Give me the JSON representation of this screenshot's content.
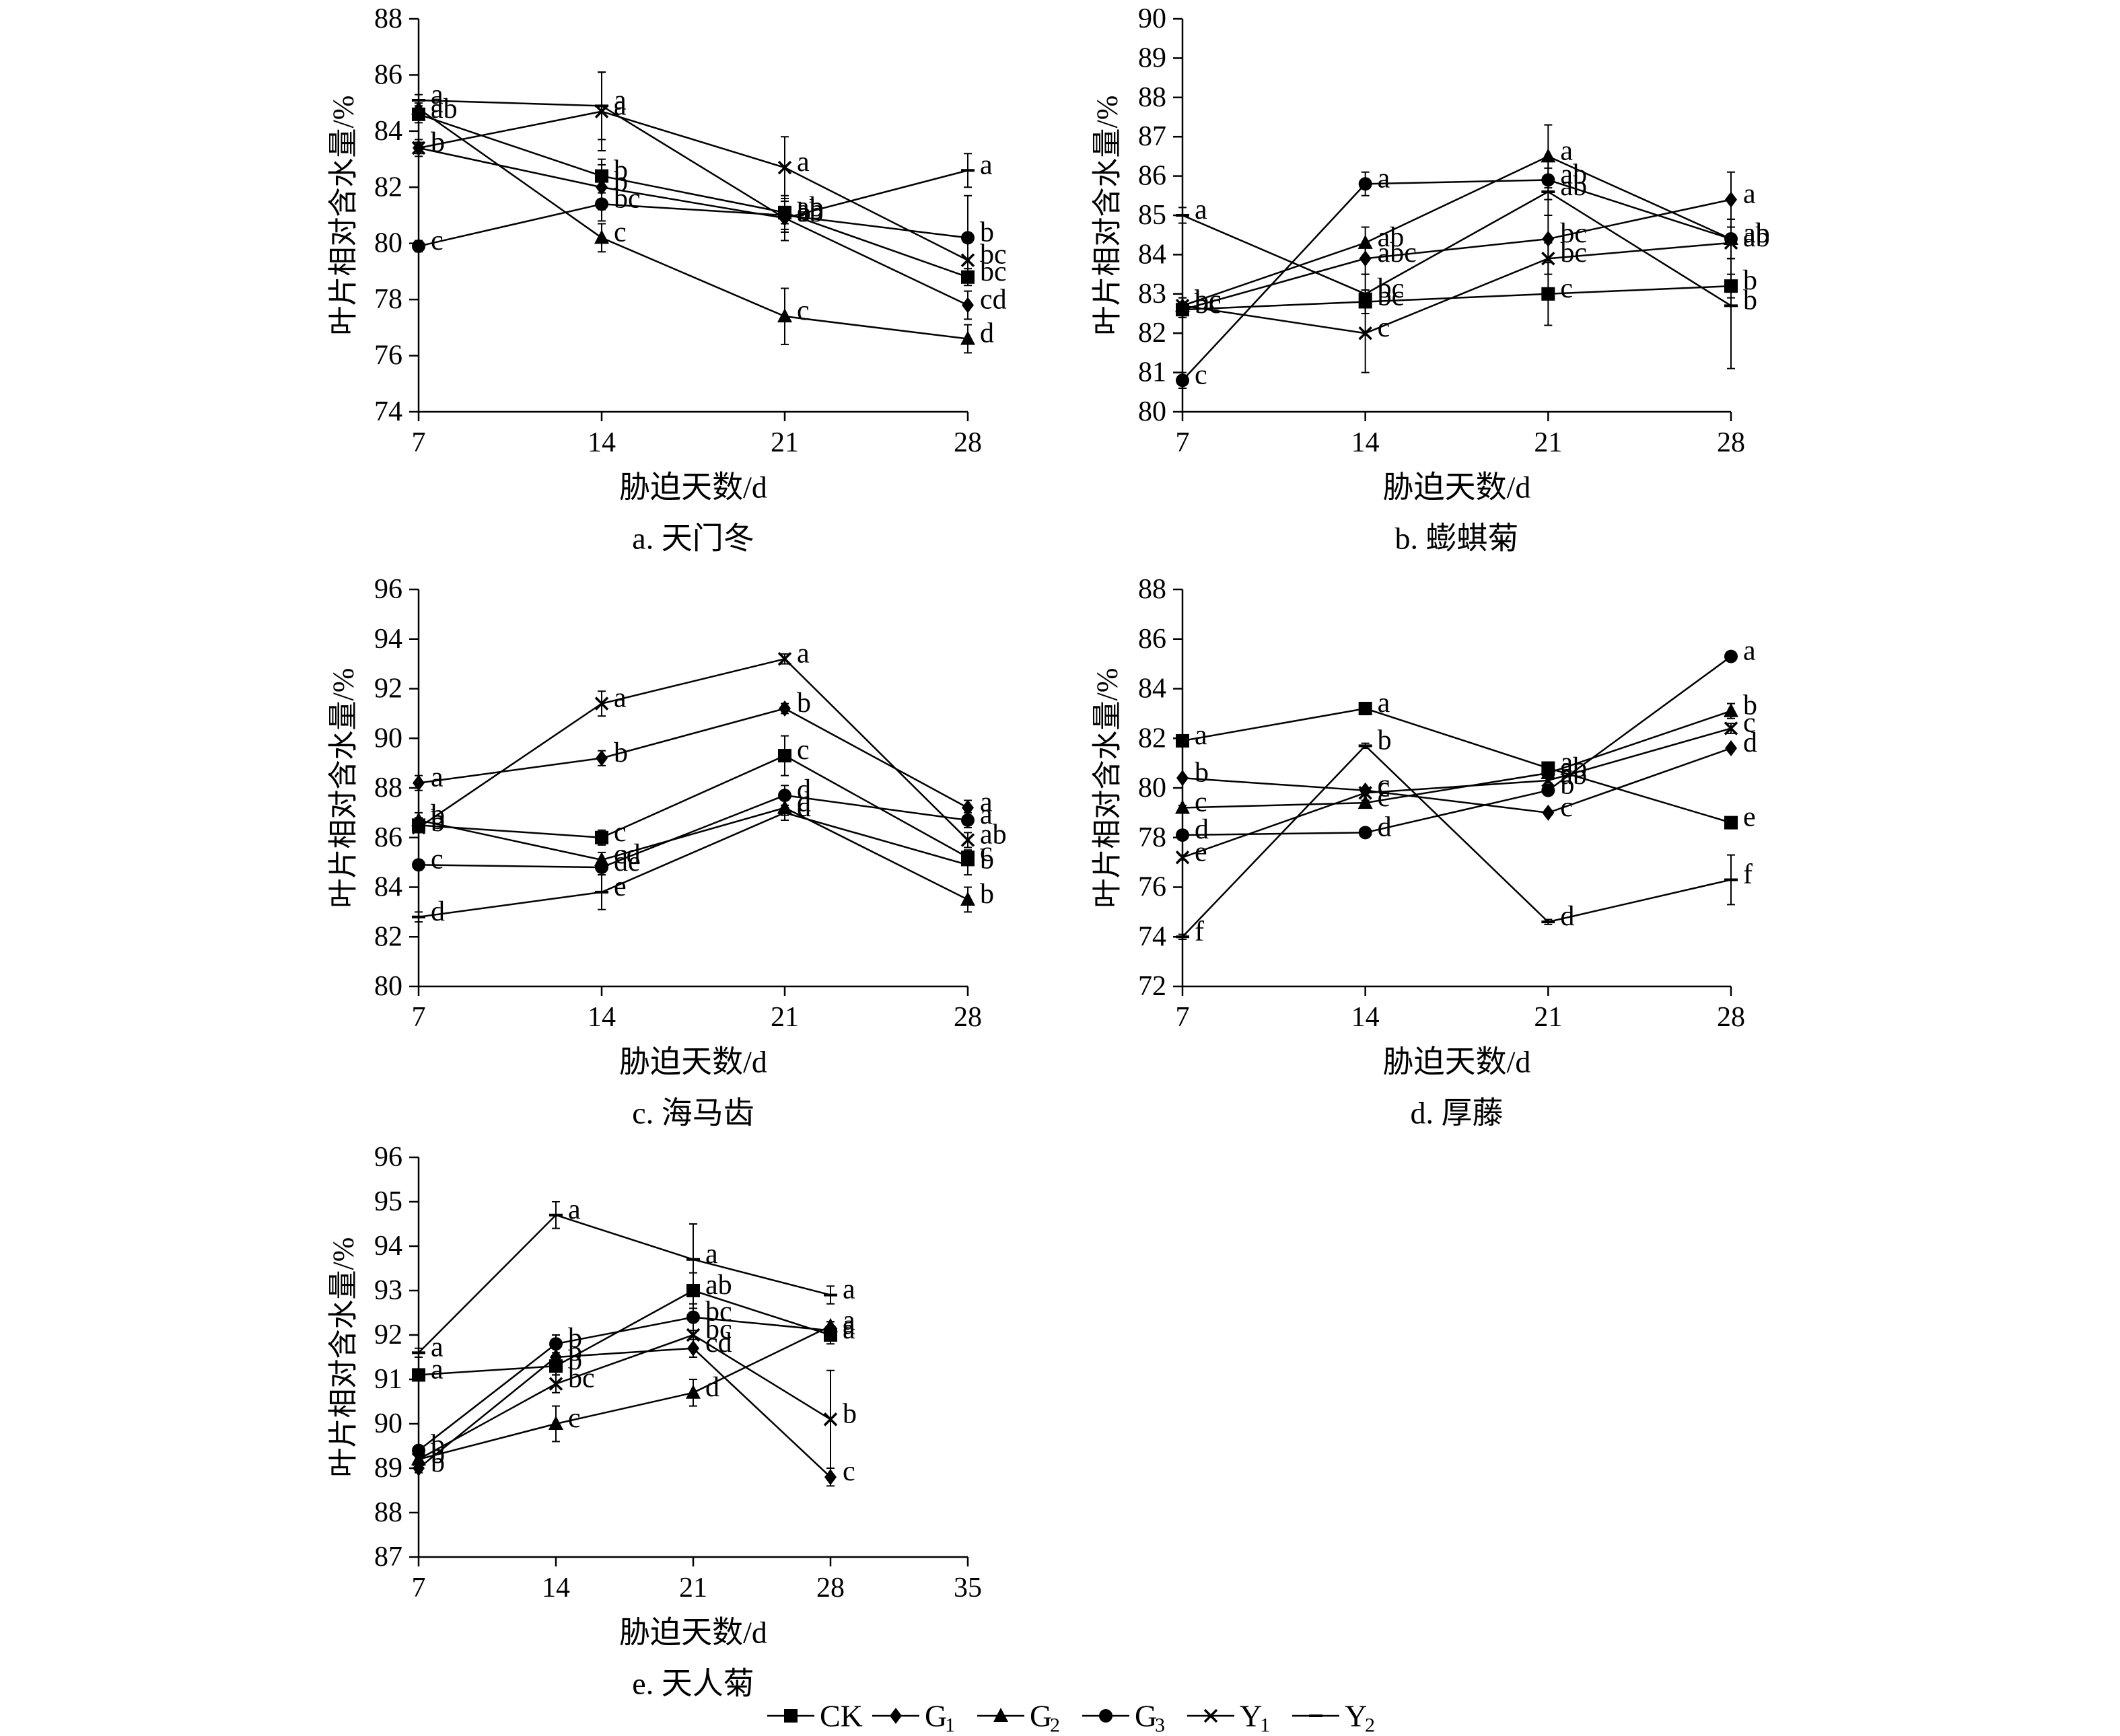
{
  "figure": {
    "legend": [
      {
        "id": "CK",
        "label": "CK",
        "sub": "",
        "marker": "square"
      },
      {
        "id": "G1",
        "label": "G",
        "sub": "1",
        "marker": "diamond"
      },
      {
        "id": "G2",
        "label": "G",
        "sub": "2",
        "marker": "triangle"
      },
      {
        "id": "G3",
        "label": "G",
        "sub": "3",
        "marker": "circle"
      },
      {
        "id": "Y1",
        "label": "Y",
        "sub": "1",
        "marker": "x"
      },
      {
        "id": "Y2",
        "label": "Y",
        "sub": "2",
        "marker": "dash"
      }
    ],
    "line_color": "#000000"
  },
  "chart_data": [
    {
      "type": "line",
      "caption": "a. 天门冬",
      "xlabel": "胁迫天数/d",
      "ylabel": "叶片相对含水量/%",
      "x": [
        7,
        14,
        21,
        28
      ],
      "xticks": [
        7,
        14,
        21,
        28
      ],
      "ylim": [
        74,
        88
      ],
      "yticks": [
        74,
        76,
        78,
        80,
        82,
        84,
        86,
        88
      ],
      "grid": false,
      "series": [
        {
          "name": "CK",
          "values": [
            84.6,
            82.4,
            81.1,
            78.8
          ],
          "errors": [
            0.3,
            0.6,
            0.4,
            0.3
          ],
          "letters": [
            "ab",
            "b",
            "ab",
            "bc"
          ]
        },
        {
          "name": "G1",
          "values": [
            83.4,
            82.0,
            80.9,
            77.8
          ],
          "errors": [
            0.2,
            0.8,
            0.4,
            0.5
          ],
          "letters": [
            "b",
            "b",
            "b",
            "cd"
          ]
        },
        {
          "name": "G2",
          "values": [
            84.8,
            80.2,
            77.4,
            76.6
          ],
          "errors": [
            0.2,
            0.5,
            1.0,
            0.5
          ],
          "letters": [
            "a",
            "c",
            "c",
            "d"
          ]
        },
        {
          "name": "G3",
          "values": [
            79.9,
            81.4,
            81.0,
            80.2
          ],
          "errors": [
            0.2,
            0.6,
            0.6,
            1.5
          ],
          "letters": [
            "c",
            "bc",
            "ab",
            "b"
          ]
        },
        {
          "name": "Y1",
          "values": [
            83.4,
            84.7,
            82.7,
            79.4
          ],
          "errors": [
            0.3,
            1.4,
            1.1,
            0.7
          ],
          "letters": [
            "b",
            "a",
            "a",
            "bc"
          ]
        },
        {
          "name": "Y2",
          "values": [
            85.1,
            84.9,
            80.9,
            82.6
          ],
          "errors": [
            0.2,
            1.2,
            0.8,
            0.6
          ],
          "letters": [
            "a",
            "a",
            "ab",
            "a"
          ]
        }
      ]
    },
    {
      "type": "line",
      "caption": "b. 蟛蜞菊",
      "xlabel": "胁迫天数/d",
      "ylabel": "叶片相对含水量/%",
      "x": [
        7,
        14,
        21,
        28
      ],
      "xticks": [
        7,
        14,
        21,
        28
      ],
      "ylim": [
        80,
        90
      ],
      "yticks": [
        80,
        81,
        82,
        83,
        84,
        85,
        86,
        87,
        88,
        89,
        90
      ],
      "grid": false,
      "series": [
        {
          "name": "CK",
          "values": [
            82.6,
            82.8,
            83.0,
            83.2
          ],
          "errors": [
            0.2,
            0.3,
            0.8,
            0.3
          ],
          "letters": [
            "bc",
            "bc",
            "c",
            "b"
          ]
        },
        {
          "name": "G1",
          "values": [
            82.6,
            83.9,
            84.4,
            85.4
          ],
          "errors": [
            0.2,
            0.4,
            0.6,
            0.7
          ],
          "letters": [
            "bc",
            "abc",
            "bc",
            "a"
          ]
        },
        {
          "name": "G2",
          "values": [
            82.7,
            84.3,
            86.5,
            84.4
          ],
          "errors": [
            0.2,
            0.4,
            0.8,
            0.5
          ],
          "letters": [
            "bc",
            "ab",
            "a",
            "ab"
          ]
        },
        {
          "name": "G3",
          "values": [
            80.8,
            85.8,
            85.9,
            84.4
          ],
          "errors": [
            0.2,
            0.3,
            0.5,
            0.5
          ],
          "letters": [
            "c",
            "a",
            "ab",
            "ab"
          ]
        },
        {
          "name": "Y1",
          "values": [
            82.7,
            82.0,
            83.9,
            84.3
          ],
          "errors": [
            0.2,
            1.0,
            0.4,
            0.4
          ],
          "letters": [
            "bc",
            "c",
            "bc",
            "ab"
          ]
        },
        {
          "name": "Y2",
          "values": [
            85.0,
            83.0,
            85.6,
            82.7
          ],
          "errors": [
            0.2,
            0.5,
            0.6,
            1.6
          ],
          "letters": [
            "a",
            "bc",
            "ab",
            "b"
          ]
        }
      ]
    },
    {
      "type": "line",
      "caption": "c. 海马齿",
      "xlabel": "胁迫天数/d",
      "ylabel": "叶片相对含水量/%",
      "x": [
        7,
        14,
        21,
        28
      ],
      "xticks": [
        7,
        14,
        21,
        28
      ],
      "ylim": [
        80,
        96
      ],
      "yticks": [
        80,
        82,
        84,
        86,
        88,
        90,
        92,
        94,
        96
      ],
      "grid": false,
      "series": [
        {
          "name": "CK",
          "values": [
            86.5,
            86.0,
            89.3,
            85.2
          ],
          "errors": [
            0.3,
            0.3,
            0.8,
            0.3
          ],
          "letters": [
            "b",
            "c",
            "c",
            "c"
          ]
        },
        {
          "name": "G1",
          "values": [
            88.2,
            89.2,
            91.2,
            87.2
          ],
          "errors": [
            0.3,
            0.3,
            0.2,
            0.3
          ],
          "letters": [
            "a",
            "b",
            "b",
            "a"
          ]
        },
        {
          "name": "G2",
          "values": [
            86.7,
            85.1,
            87.2,
            83.5
          ],
          "errors": [
            0.3,
            0.3,
            0.3,
            0.5
          ],
          "letters": [
            "b",
            "cd",
            "d",
            "b"
          ]
        },
        {
          "name": "G3",
          "values": [
            84.9,
            84.8,
            87.7,
            86.7
          ],
          "errors": [
            0.2,
            0.3,
            0.4,
            0.3
          ],
          "letters": [
            "c",
            "de",
            "d",
            "a"
          ]
        },
        {
          "name": "Y1",
          "values": [
            86.4,
            91.4,
            93.2,
            85.9
          ],
          "errors": [
            0.2,
            0.5,
            0.2,
            0.3
          ],
          "letters": [
            "b",
            "a",
            "a",
            "ab"
          ]
        },
        {
          "name": "Y2",
          "values": [
            82.8,
            83.8,
            87.0,
            84.9
          ],
          "errors": [
            0.2,
            0.7,
            0.3,
            0.4
          ],
          "letters": [
            "d",
            "e",
            "d",
            "b"
          ]
        }
      ]
    },
    {
      "type": "line",
      "caption": "d. 厚藤",
      "xlabel": "胁迫天数/d",
      "ylabel": "叶片相对含水量/%",
      "x": [
        7,
        14,
        21,
        28
      ],
      "xticks": [
        7,
        14,
        21,
        28
      ],
      "ylim": [
        72,
        88
      ],
      "yticks": [
        72,
        74,
        76,
        78,
        80,
        82,
        84,
        86,
        88
      ],
      "grid": false,
      "series": [
        {
          "name": "CK",
          "values": [
            81.9,
            83.2,
            80.8,
            78.6
          ],
          "errors": [
            0.1,
            0.1,
            0.1,
            0.1
          ],
          "letters": [
            "a",
            "a",
            "a",
            "e"
          ]
        },
        {
          "name": "G1",
          "values": [
            80.4,
            79.9,
            79.0,
            81.6
          ],
          "errors": [
            0.1,
            0.1,
            0.1,
            0.1
          ],
          "letters": [
            "b",
            "c",
            "c",
            "d"
          ]
        },
        {
          "name": "G2",
          "values": [
            79.2,
            79.4,
            80.6,
            83.1
          ],
          "errors": [
            0.1,
            0.1,
            0.1,
            0.3
          ],
          "letters": [
            "c",
            "c",
            "ab",
            "b"
          ]
        },
        {
          "name": "G3",
          "values": [
            78.1,
            78.2,
            79.9,
            85.3
          ],
          "errors": [
            0.1,
            0.1,
            0.1,
            0.1
          ],
          "letters": [
            "d",
            "d",
            "b",
            "a"
          ]
        },
        {
          "name": "Y1",
          "values": [
            77.2,
            79.8,
            80.3,
            82.4
          ],
          "errors": [
            0.1,
            0.1,
            0.1,
            0.2
          ],
          "letters": [
            "e",
            "c",
            "ab",
            "c"
          ]
        },
        {
          "name": "Y2",
          "values": [
            74.0,
            81.7,
            74.6,
            76.3
          ],
          "errors": [
            0.1,
            0.1,
            0.1,
            1.0
          ],
          "letters": [
            "f",
            "b",
            "d",
            "f"
          ]
        }
      ]
    },
    {
      "type": "line",
      "caption": "e. 天人菊",
      "xlabel": "胁迫天数/d",
      "ylabel": "叶片相对含水量/%",
      "x": [
        7,
        14,
        21,
        28
      ],
      "xticks": [
        7,
        14,
        21,
        28,
        35
      ],
      "ylim": [
        87,
        96
      ],
      "yticks": [
        87,
        88,
        89,
        90,
        91,
        92,
        93,
        94,
        95,
        96
      ],
      "grid": false,
      "series": [
        {
          "name": "CK",
          "values": [
            91.1,
            91.3,
            93.0,
            92.0
          ],
          "errors": [
            0.1,
            0.2,
            0.4,
            0.2
          ],
          "letters": [
            "a",
            "b",
            "ab",
            "a"
          ]
        },
        {
          "name": "G1",
          "values": [
            89.0,
            91.5,
            91.7,
            88.8
          ],
          "errors": [
            0.1,
            0.2,
            0.2,
            0.2
          ],
          "letters": [
            "b",
            "b",
            "cd",
            "c"
          ]
        },
        {
          "name": "G2",
          "values": [
            89.2,
            90.0,
            90.7,
            92.2
          ],
          "errors": [
            0.1,
            0.4,
            0.3,
            0.1
          ],
          "letters": [
            "b",
            "c",
            "d",
            "a"
          ]
        },
        {
          "name": "G3",
          "values": [
            89.4,
            91.8,
            92.4,
            92.1
          ],
          "errors": [
            0.1,
            0.2,
            0.3,
            0.2
          ],
          "letters": [
            "b",
            "b",
            "bc",
            "a"
          ]
        },
        {
          "name": "Y1",
          "values": [
            89.2,
            90.9,
            92.0,
            90.1
          ],
          "errors": [
            0.1,
            0.2,
            0.3,
            1.1
          ],
          "letters": [
            "b",
            "bc",
            "bc",
            "b"
          ]
        },
        {
          "name": "Y2",
          "values": [
            91.6,
            94.7,
            93.7,
            92.9
          ],
          "errors": [
            0.1,
            0.3,
            0.8,
            0.2
          ],
          "letters": [
            "a",
            "a",
            "a",
            "a"
          ]
        }
      ]
    }
  ]
}
